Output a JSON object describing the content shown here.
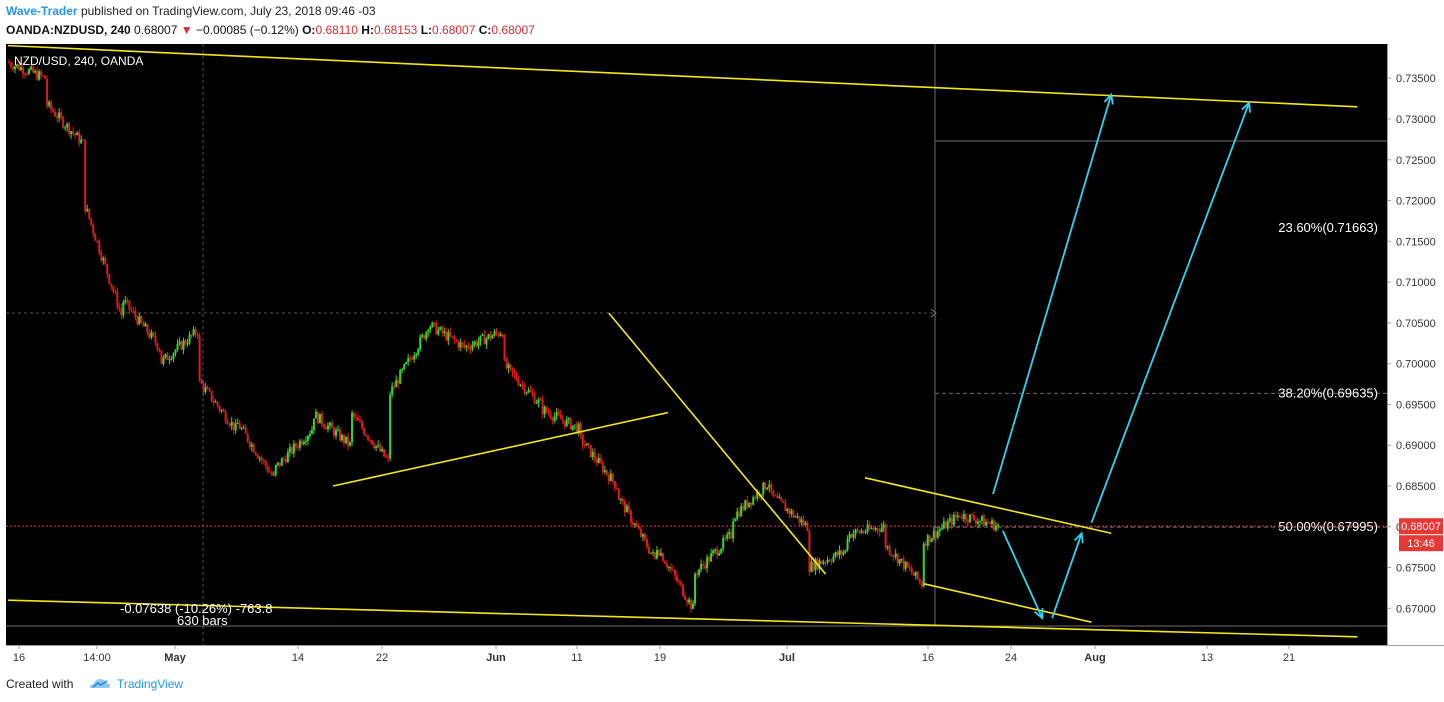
{
  "header": {
    "author": "Wave-Trader",
    "published": "published on TradingView.com, July 23, 2018 09:46 -03",
    "symbol": "OANDA:NZDUSD, 240",
    "last": "0.68007",
    "change": "−0.00085 (−0.12%)",
    "o_label": "O:",
    "o": "0.68110",
    "h_label": "H:",
    "h": "0.68153",
    "l_label": "L:",
    "l": "0.68007",
    "c_label": "C:",
    "c": "0.68007"
  },
  "footer": {
    "created": "Created with",
    "brand": "TradingView"
  },
  "colors": {
    "bg": "#000000",
    "up": "#33d633",
    "down": "#e01b1b",
    "trend": "#f4e619",
    "arrow": "#2fd4f0",
    "price": "#e53935"
  },
  "chart_data": {
    "type": "candlestick",
    "title": "NZD/USD, 240, OANDA",
    "ylim": [
      0.6655,
      0.7392
    ],
    "y_ticks": [
      "0.73500",
      "0.73000",
      "0.72500",
      "0.72000",
      "0.71500",
      "0.71000",
      "0.70500",
      "0.70000",
      "0.69500",
      "0.69000",
      "0.68500",
      "0.68000",
      "0.67500",
      "0.67000"
    ],
    "x_ticks": [
      "16",
      "14:00",
      "May",
      "14",
      "22",
      "Jun",
      "11",
      "19",
      "Jul",
      "16",
      "24",
      "Aug",
      "13",
      "21"
    ],
    "price_series": [
      [
        0.737,
        0.735
      ],
      [
        0.732,
        0.727
      ],
      [
        0.72,
        0.706
      ],
      [
        0.708,
        0.702
      ],
      [
        0.7,
        0.704
      ],
      [
        0.698,
        0.692
      ],
      [
        0.693,
        0.686
      ],
      [
        0.687,
        0.692
      ],
      [
        0.694,
        0.69
      ],
      [
        0.694,
        0.688
      ],
      [
        0.696,
        0.704
      ],
      [
        0.705,
        0.702
      ],
      [
        0.702,
        0.704
      ],
      [
        0.7,
        0.695
      ],
      [
        0.6945,
        0.692
      ],
      [
        0.691,
        0.685
      ],
      [
        0.684,
        0.676
      ],
      [
        0.678,
        0.67
      ],
      [
        0.674,
        0.679
      ],
      [
        0.681,
        0.6855
      ],
      [
        0.684,
        0.68
      ],
      [
        0.675,
        0.677
      ],
      [
        0.679,
        0.68
      ],
      [
        0.678,
        0.673
      ],
      [
        0.678,
        0.6815
      ],
      [
        0.6815,
        0.6801
      ]
    ],
    "last_price": "0.68007",
    "countdown": "13:46",
    "fib_levels": [
      {
        "label": "23.60%(0.71663)",
        "value": 0.71663
      },
      {
        "label": "38.20%(0.69635)",
        "value": 0.69635
      },
      {
        "label": "50.00%(0.67995)",
        "value": 0.67995
      }
    ],
    "measure": {
      "line1": "-0.07638 (-10.26%) -763.8",
      "line2": "630 bars"
    },
    "trend_lines": [
      {
        "from": [
          "Apr 13",
          0.739
        ],
        "to": [
          "Aug 28",
          0.7315
        ]
      },
      {
        "from": [
          "Apr 13",
          0.671
        ],
        "to": [
          "Aug 28",
          0.6665
        ]
      },
      {
        "from": [
          "May 16",
          0.685
        ],
        "to": [
          "Jun 19",
          0.694
        ]
      },
      {
        "from": [
          "Jun 13",
          0.7062
        ],
        "to": [
          "Jul 5",
          0.6742
        ]
      },
      {
        "from": [
          "Jul 9",
          0.686
        ],
        "to": [
          "Aug 3",
          0.6792
        ]
      },
      {
        "from": [
          "Jul 15",
          0.673
        ],
        "to": [
          "Aug 1",
          0.6683
        ]
      }
    ],
    "projection_arrows": [
      {
        "from": [
          "Jul 22",
          0.684
        ],
        "to": [
          "Aug 3",
          0.733
        ]
      },
      {
        "from": [
          "Jul 23",
          0.6795
        ],
        "to": [
          "Jul 27",
          0.6688
        ]
      },
      {
        "from": [
          "Jul 28",
          0.6688
        ],
        "to": [
          "Jul 31",
          0.6792
        ]
      },
      {
        "from": [
          "Aug 1",
          0.6805
        ],
        "to": [
          "Aug 17",
          0.732
        ]
      }
    ]
  }
}
